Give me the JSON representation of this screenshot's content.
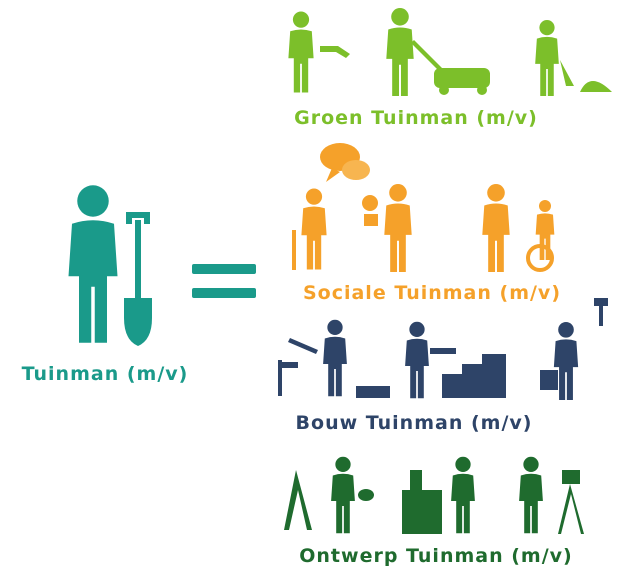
{
  "main": {
    "label": "Tuinman (m/v)"
  },
  "groups": [
    {
      "label": "Groen Tuinman (m/v)"
    },
    {
      "label": "Sociale Tuinman (m/v)"
    },
    {
      "label": "Bouw Tuinman (m/v)"
    },
    {
      "label": "Ontwerp Tuinman (m/v)"
    }
  ]
}
